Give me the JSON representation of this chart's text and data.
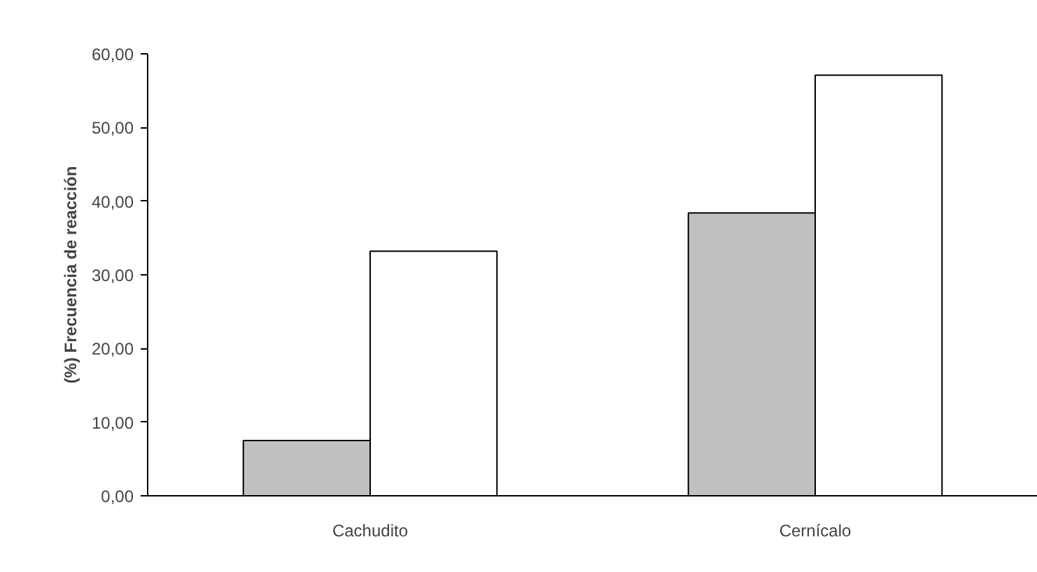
{
  "chart_data": {
    "type": "bar",
    "ylabel": "(%) Frecuencia de reacción",
    "categories": [
      "Cachudito",
      "Cernícalo"
    ],
    "series": [
      {
        "color": "#c0c0c0",
        "values": [
          7.5,
          38.4
        ]
      },
      {
        "color": "#ffffff",
        "values": [
          33.2,
          57.1
        ]
      }
    ],
    "ylim": [
      0,
      60
    ],
    "yticks": [
      {
        "value": 0,
        "label": "0,00"
      },
      {
        "value": 10,
        "label": "10,00"
      },
      {
        "value": 20,
        "label": "20,00"
      },
      {
        "value": 30,
        "label": "30,00"
      },
      {
        "value": 40,
        "label": "40,00"
      },
      {
        "value": 50,
        "label": "50,00"
      },
      {
        "value": 60,
        "label": "60,00"
      }
    ],
    "grid": false
  }
}
